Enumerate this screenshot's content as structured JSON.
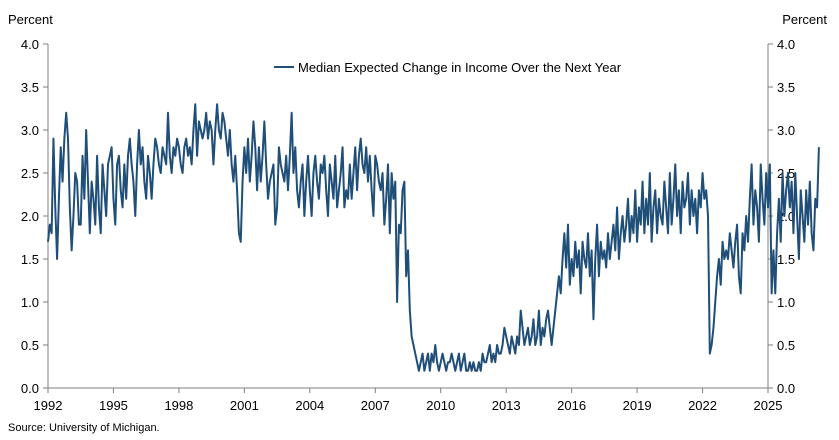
{
  "left_unit": "Percent",
  "right_unit": "Percent",
  "source": "Source: University of Michigan.",
  "colors": {
    "series": "#1f4e79",
    "axis": "#7f7f7f",
    "text": "#000000"
  },
  "chart_data": {
    "type": "line",
    "title": "",
    "xlabel": "",
    "ylabel": "Percent",
    "xlim": [
      1992,
      2025
    ],
    "ylim": [
      0,
      4
    ],
    "x_ticks": [
      "1992",
      "1995",
      "1998",
      "2001",
      "2004",
      "2007",
      "2010",
      "2013",
      "2016",
      "2019",
      "2022",
      "2025"
    ],
    "y_ticks": [
      "0.0",
      "0.5",
      "1.0",
      "1.5",
      "2.0",
      "2.5",
      "3.0",
      "3.5",
      "4.0"
    ],
    "grid": false,
    "legend_position": "top",
    "series": [
      {
        "name": "Median Expected Change in Income Over the Next Year",
        "color": "#1f4e79",
        "x_start": 1992.0,
        "x_step": 0.0833333,
        "values": [
          1.7,
          1.9,
          1.8,
          2.9,
          2.1,
          1.5,
          2.2,
          2.8,
          2.4,
          2.9,
          3.2,
          2.9,
          2.1,
          1.6,
          2.0,
          2.5,
          2.4,
          1.9,
          1.9,
          2.7,
          2.2,
          3.0,
          2.4,
          1.8,
          2.4,
          2.2,
          1.9,
          2.7,
          2.1,
          1.8,
          2.6,
          2.3,
          2.0,
          2.6,
          2.7,
          2.8,
          2.2,
          1.9,
          2.6,
          2.7,
          2.3,
          2.1,
          2.6,
          2.2,
          2.7,
          2.9,
          2.6,
          2.4,
          2.0,
          2.6,
          3.0,
          2.6,
          2.8,
          2.4,
          2.2,
          2.7,
          2.5,
          2.2,
          2.6,
          2.9,
          2.8,
          2.6,
          2.5,
          2.8,
          2.7,
          2.6,
          3.2,
          2.7,
          2.5,
          2.8,
          2.7,
          2.9,
          2.8,
          2.6,
          2.5,
          2.8,
          2.9,
          2.7,
          2.8,
          2.6,
          3.0,
          3.3,
          2.7,
          3.1,
          3.0,
          2.9,
          3.0,
          3.2,
          2.9,
          3.1,
          3.0,
          2.6,
          3.0,
          3.3,
          3.0,
          2.9,
          3.2,
          3.1,
          2.9,
          2.7,
          3.0,
          2.6,
          2.4,
          2.7,
          2.3,
          1.8,
          1.7,
          2.4,
          2.8,
          2.5,
          2.9,
          2.4,
          2.7,
          3.1,
          2.8,
          2.3,
          2.8,
          2.4,
          2.7,
          3.1,
          2.6,
          2.2,
          2.4,
          2.5,
          2.6,
          1.9,
          2.1,
          2.8,
          2.6,
          2.5,
          2.4,
          2.7,
          2.3,
          2.7,
          3.2,
          2.5,
          2.8,
          2.3,
          2.1,
          2.4,
          2.6,
          2.0,
          2.4,
          2.7,
          2.3,
          2.0,
          2.5,
          2.7,
          2.4,
          2.2,
          2.6,
          2.5,
          2.7,
          2.3,
          2.0,
          2.6,
          2.4,
          2.2,
          2.7,
          2.1,
          2.3,
          2.5,
          2.8,
          2.1,
          2.3,
          2.2,
          2.6,
          2.2,
          2.5,
          2.8,
          2.3,
          2.7,
          2.9,
          2.6,
          2.5,
          2.8,
          2.4,
          2.7,
          2.3,
          2.0,
          2.7,
          2.6,
          2.4,
          2.3,
          2.5,
          1.9,
          2.2,
          2.6,
          1.8,
          2.5,
          2.2,
          2.4,
          1.0,
          1.9,
          1.8,
          2.3,
          2.4,
          1.3,
          1.6,
          0.9,
          0.6,
          0.5,
          0.4,
          0.3,
          0.2,
          0.3,
          0.4,
          0.2,
          0.3,
          0.4,
          0.2,
          0.4,
          0.3,
          0.5,
          0.3,
          0.2,
          0.3,
          0.4,
          0.3,
          0.2,
          0.3,
          0.3,
          0.4,
          0.3,
          0.2,
          0.3,
          0.4,
          0.2,
          0.3,
          0.4,
          0.2,
          0.2,
          0.3,
          0.2,
          0.3,
          0.2,
          0.2,
          0.3,
          0.2,
          0.4,
          0.3,
          0.3,
          0.4,
          0.5,
          0.3,
          0.4,
          0.3,
          0.5,
          0.4,
          0.4,
          0.5,
          0.7,
          0.6,
          0.5,
          0.4,
          0.6,
          0.5,
          0.4,
          0.6,
          0.5,
          0.9,
          0.7,
          0.5,
          0.6,
          0.7,
          0.5,
          0.6,
          0.8,
          0.5,
          0.6,
          0.9,
          0.5,
          0.7,
          0.6,
          0.8,
          0.9,
          0.7,
          0.5,
          0.7,
          0.9,
          1.1,
          1.3,
          1.1,
          1.5,
          1.8,
          1.4,
          1.9,
          1.2,
          1.5,
          1.3,
          1.7,
          1.4,
          1.6,
          1.1,
          1.7,
          1.5,
          1.4,
          1.8,
          1.3,
          1.6,
          0.8,
          1.5,
          1.9,
          1.3,
          1.7,
          1.5,
          1.6,
          1.4,
          1.8,
          1.5,
          1.7,
          1.9,
          1.6,
          2.1,
          1.5,
          1.8,
          2.0,
          1.7,
          1.9,
          2.2,
          1.7,
          2.0,
          1.8,
          2.3,
          1.7,
          2.1,
          1.9,
          2.4,
          1.8,
          2.2,
          1.9,
          2.5,
          1.7,
          2.1,
          2.3,
          1.8,
          2.2,
          2.0,
          1.9,
          2.4,
          2.1,
          1.8,
          2.5,
          1.9,
          2.2,
          2.6,
          2.0,
          2.3,
          1.8,
          2.4,
          2.1,
          2.2,
          2.5,
          1.9,
          2.3,
          2.0,
          2.2,
          1.8,
          2.3,
          2.1,
          2.5,
          2.2,
          2.3,
          2.0,
          0.4,
          0.5,
          0.7,
          1.0,
          1.3,
          1.5,
          1.2,
          1.7,
          1.5,
          1.6,
          1.5,
          1.8,
          1.6,
          1.4,
          1.7,
          1.9,
          1.3,
          1.1,
          1.8,
          1.6,
          2.0,
          1.7,
          2.2,
          2.6,
          1.9,
          2.3,
          2.1,
          1.7,
          2.6,
          2.2,
          1.9,
          2.5,
          2.1,
          2.6,
          1.1,
          1.6,
          1.1,
          1.8,
          2.2,
          1.7,
          2.5,
          2.0,
          2.3,
          2.5,
          2.1,
          2.4,
          1.8,
          2.5,
          2.0,
          1.5,
          2.3,
          2.0,
          1.7,
          2.3,
          1.9,
          2.4,
          1.8,
          1.6,
          2.2,
          2.1,
          2.8
        ]
      }
    ]
  }
}
